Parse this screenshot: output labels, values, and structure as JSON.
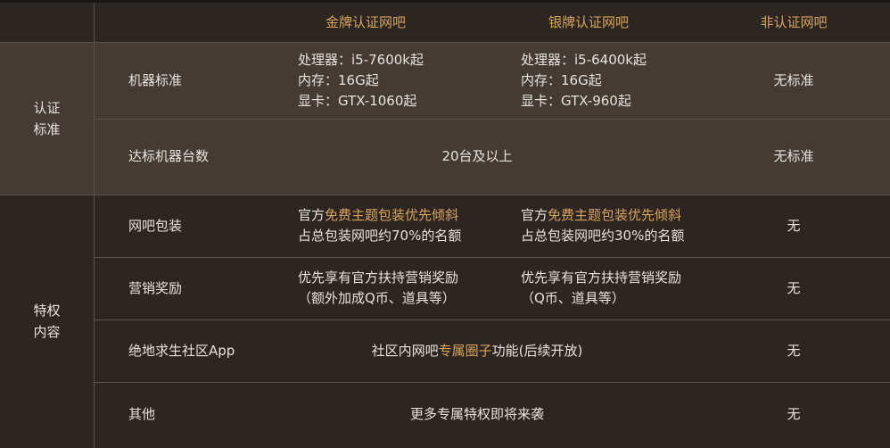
{
  "accent_color": "#d9a45a",
  "header": {
    "gold": "金牌认证网吧",
    "silver": "银牌认证网吧",
    "none": "非认证网吧"
  },
  "sections": {
    "cert": [
      "认证",
      "标准"
    ],
    "priv": [
      "特权",
      "内容"
    ]
  },
  "rows": {
    "machine": {
      "label": "机器标准",
      "gold": [
        "处理器：i5-7600k起",
        "内存：16G起",
        "显卡：GTX-1060起"
      ],
      "silver": [
        "处理器：i5-6400k起",
        "内存：16G起",
        "显卡：GTX-960起"
      ],
      "none": "无标准"
    },
    "count": {
      "label": "达标机器台数",
      "shared": "20台及以上",
      "none": "无标准"
    },
    "package": {
      "label": "网吧包装",
      "gold": {
        "pre": "官方",
        "hl": "免费主题包装优先倾斜",
        "line2": "占总包装网吧约70%的名额"
      },
      "silver": {
        "pre": "官方",
        "hl": "免费主题包装优先倾斜",
        "line2": "占总包装网吧约30%的名额"
      },
      "none": "无"
    },
    "marketing": {
      "label": "营销奖励",
      "gold": [
        "优先享有官方扶持营销奖励",
        "（额外加成Q币、道具等）"
      ],
      "silver": [
        "优先享有官方扶持营销奖励",
        "（Q币、道具等）"
      ],
      "none": "无"
    },
    "app": {
      "label": "绝地求生社区App",
      "pre": "社区内网吧",
      "hl": "专属圈子",
      "post": "功能(后续开放)",
      "none": "无"
    },
    "other": {
      "label": "其他",
      "shared": "更多专属特权即将来袭",
      "none": "无"
    }
  }
}
